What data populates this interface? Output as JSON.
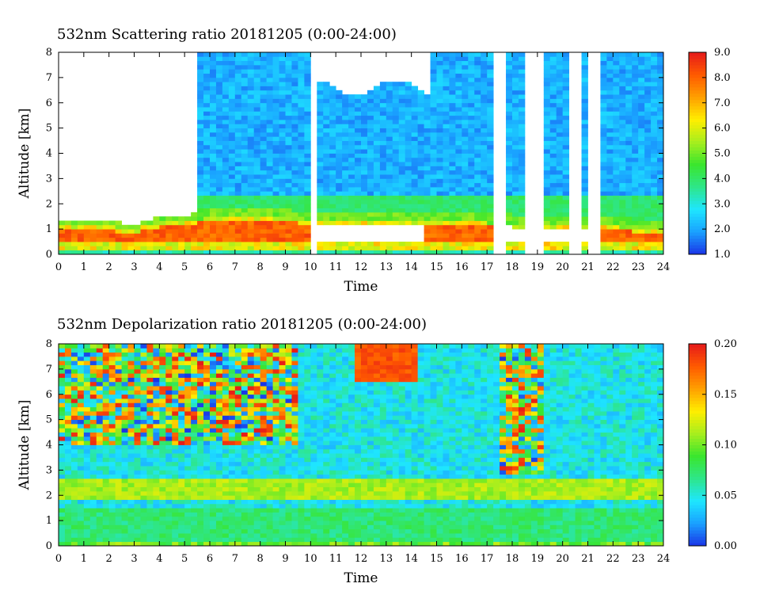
{
  "chart_data": [
    {
      "type": "heatmap",
      "title": "532nm Scattering ratio  20181205 (0:00-24:00)",
      "xlabel": "Time",
      "ylabel": "Altitude [km]",
      "xlim": [
        0,
        24
      ],
      "ylim": [
        0,
        8
      ],
      "x_ticks": [
        "0",
        "1",
        "2",
        "3",
        "4",
        "5",
        "6",
        "7",
        "8",
        "9",
        "10",
        "11",
        "12",
        "13",
        "14",
        "15",
        "16",
        "17",
        "18",
        "19",
        "20",
        "21",
        "22",
        "23",
        "24"
      ],
      "y_ticks": [
        "0",
        "1",
        "2",
        "3",
        "4",
        "5",
        "6",
        "7",
        "8"
      ],
      "colorbar": {
        "range": [
          1.0,
          9.0
        ],
        "ticks": [
          "1.0",
          "2.0",
          "3.0",
          "4.0",
          "5.0",
          "6.0",
          "7.0",
          "8.0",
          "9.0"
        ],
        "colors": [
          "#1a33e6",
          "#1aa0ff",
          "#1ee6ff",
          "#2ee68a",
          "#3ae62e",
          "#a6ee1e",
          "#ffee00",
          "#ffa000",
          "#ff5a00",
          "#e61a1a"
        ]
      },
      "boundary_layer": [
        {
          "t": 0,
          "top": 1.2
        },
        {
          "t": 2,
          "top": 1.1
        },
        {
          "t": 3,
          "top": 1.0
        },
        {
          "t": 4,
          "top": 1.25
        },
        {
          "t": 6,
          "top": 1.45
        },
        {
          "t": 7.5,
          "top": 1.55
        },
        {
          "t": 10,
          "top": 1.35
        },
        {
          "t": 14,
          "top": 1.3
        },
        {
          "t": 17,
          "top": 1.25
        },
        {
          "t": 20,
          "top": 1.2
        },
        {
          "t": 24,
          "top": 1.0
        }
      ],
      "gaps": [
        [
          9.9,
          10.2
        ],
        [
          17.3,
          17.7
        ],
        [
          18.6,
          19.3
        ],
        [
          20.3,
          20.7
        ],
        [
          21.1,
          21.5
        ]
      ],
      "cloud_top": {
        "t_start": 10.3,
        "t_end": 14.8,
        "bottom": 6.6
      }
    },
    {
      "type": "heatmap",
      "title": "532nm Depolarization ratio  20181205 (0:00-24:00)",
      "xlabel": "Time",
      "ylabel": "Altitude [km]",
      "xlim": [
        0,
        24
      ],
      "ylim": [
        0,
        8
      ],
      "x_ticks": [
        "0",
        "1",
        "2",
        "3",
        "4",
        "5",
        "6",
        "7",
        "8",
        "9",
        "10",
        "11",
        "12",
        "13",
        "14",
        "15",
        "16",
        "17",
        "18",
        "19",
        "20",
        "21",
        "22",
        "23",
        "24"
      ],
      "y_ticks": [
        "0",
        "1",
        "2",
        "3",
        "4",
        "5",
        "6",
        "7",
        "8"
      ],
      "colorbar": {
        "range": [
          0.0,
          0.2
        ],
        "ticks": [
          "0.00",
          "0.05",
          "0.10",
          "0.15",
          "0.20"
        ],
        "colors": [
          "#1a33e6",
          "#1aa0ff",
          "#1ee6ff",
          "#2ee68a",
          "#3ae62e",
          "#a6ee1e",
          "#ffee00",
          "#ffa000",
          "#ff5a00",
          "#e61a1a"
        ]
      },
      "aerosol_layer": {
        "bottom": 1.8,
        "top": 2.6,
        "value": 0.1
      },
      "noise_region": {
        "t_end": 9.5,
        "bottom": 4.0
      }
    }
  ]
}
